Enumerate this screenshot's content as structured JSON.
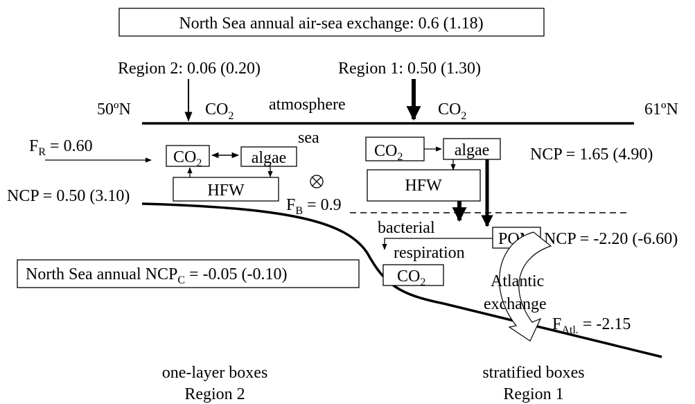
{
  "header": {
    "title": "North Sea annual air-sea exchange: 0.6 (1.18)"
  },
  "atmosphere": {
    "region2_flux": "Region 2: 0.06 (0.20)",
    "region1_flux": "Region 1: 0.50 (1.30)",
    "lat_south": "50ºN",
    "lat_north": "61ºN",
    "label": "atmosphere",
    "co2_left": {
      "base": "CO",
      "sub": "2"
    },
    "co2_right": {
      "base": "CO",
      "sub": "2"
    }
  },
  "sea": {
    "label": "sea"
  },
  "region2": {
    "river": {
      "base": "F",
      "sub": "R",
      "rest": " = 0.60"
    },
    "co2": {
      "base": "CO",
      "sub": "2"
    },
    "algae": "algae",
    "hfw": "HFW",
    "ncp": "NCP = 0.50 (3.10)",
    "boundary": {
      "base": "F",
      "sub": "B",
      "rest": " = 0.9"
    }
  },
  "region1": {
    "co2": {
      "base": "CO",
      "sub": "2"
    },
    "algae": "algae",
    "hfw": "HFW",
    "ncp_surface": "NCP = 1.65 (4.90)",
    "pom": "POM",
    "ncp_deep": "NCP = -2.20 (-6.60)",
    "bacterial": "bacterial",
    "respiration": "respiration",
    "co2_deep": {
      "base": "CO",
      "sub": "2"
    },
    "atlantic": "Atlantic",
    "exchange": "exchange",
    "atlantic_flux": {
      "base": "F",
      "sub": "Atl.",
      "rest": " = -2.15"
    }
  },
  "summary": {
    "base": "North Sea annual NCP",
    "sub": "C",
    "rest": " = -0.05 (-0.10)"
  },
  "footer": {
    "left_line1": "one-layer boxes",
    "left_line2": "Region 2",
    "right_line1": "stratified boxes",
    "right_line2": "Region 1"
  }
}
